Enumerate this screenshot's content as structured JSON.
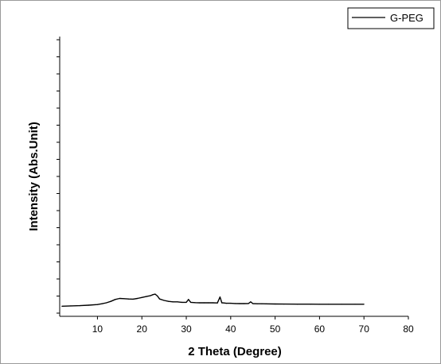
{
  "chart_data": {
    "type": "line",
    "xlabel": "2 Theta (Degree)",
    "ylabel": "Intensity (Abs.Unit)",
    "xlim": [
      1.5,
      80
    ],
    "ylim": [
      -10,
      280
    ],
    "x_ticks": [
      10,
      20,
      30,
      40,
      50,
      60,
      70,
      80
    ],
    "y_tick_count": 17,
    "legend_position": "top-right",
    "grid": false,
    "series": [
      {
        "name": "G-PEG",
        "color": "#000000",
        "x": [
          2,
          4,
          6,
          8,
          10,
          11,
          12,
          13,
          14,
          15,
          16,
          17,
          18,
          19,
          20,
          21,
          22,
          22.5,
          23,
          23.5,
          24,
          25,
          26,
          27,
          28,
          29,
          30,
          30.5,
          31,
          32,
          33,
          34,
          35,
          36,
          37,
          37.6,
          38,
          38.5,
          39,
          40,
          41,
          42,
          43,
          44,
          44.5,
          45,
          46,
          47,
          48,
          50,
          52,
          55,
          58,
          60,
          62,
          65,
          68,
          70
        ],
        "y": [
          0.5,
          0.8,
          1.0,
          1.5,
          2.2,
          3.0,
          4.0,
          5.5,
          7.5,
          8.5,
          8.3,
          8.0,
          7.8,
          8.5,
          9.5,
          10.5,
          11.5,
          12.5,
          13.0,
          11.0,
          8.0,
          6.5,
          5.5,
          5.0,
          5.0,
          4.5,
          4.5,
          7.5,
          4.5,
          4.2,
          4.0,
          4.0,
          4.0,
          4.0,
          3.8,
          10.0,
          4.0,
          3.8,
          3.5,
          3.5,
          3.3,
          3.2,
          3.2,
          3.3,
          5.0,
          3.2,
          3.0,
          3.0,
          2.9,
          2.8,
          2.7,
          2.6,
          2.6,
          2.5,
          2.5,
          2.5,
          2.5,
          2.5
        ]
      }
    ]
  }
}
